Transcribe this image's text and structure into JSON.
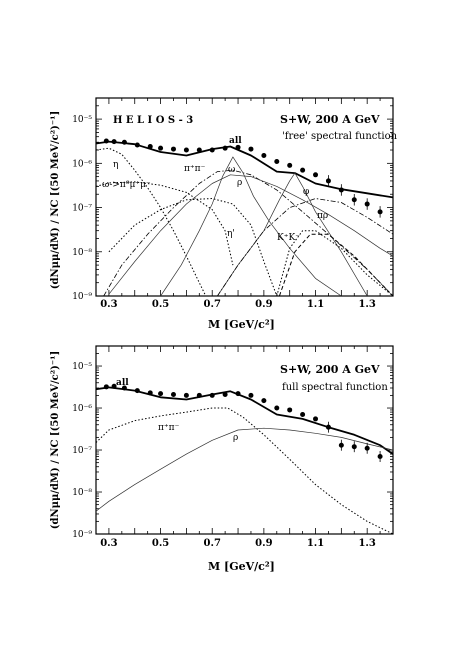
{
  "chart_data": [
    {
      "type": "line",
      "title": "S+W, 200 A GeV",
      "experiment": "H E L I O S - 3",
      "subtitle": "'free' spectral function",
      "xlabel": "M [GeV/c²]",
      "ylabel": "(dNμμ/dM) / NC  [(50 MeV/c²)⁻¹]",
      "y_scale": "log",
      "xlim": [
        0.25,
        1.4
      ],
      "ylim": [
        1e-09,
        3e-05
      ],
      "xticks": [
        "0.3",
        "0.5",
        "0.7",
        "0.9",
        "1.1",
        "1.3"
      ],
      "yticks": [
        "10⁻⁹",
        "10⁻⁸",
        "10⁻⁷",
        "10⁻⁶",
        "10⁻⁵"
      ],
      "series": [
        {
          "name": "all",
          "style": "solid-thick",
          "x": [
            0.25,
            0.3,
            0.4,
            0.5,
            0.6,
            0.7,
            0.77,
            0.85,
            0.95,
            1.02,
            1.1,
            1.2,
            1.3,
            1.4
          ],
          "y": [
            2.8e-06,
            3.1e-06,
            2.7e-06,
            1.8e-06,
            1.5e-06,
            2.1e-06,
            2.4e-06,
            1.5e-06,
            6.5e-07,
            6e-07,
            3.5e-07,
            2.6e-07,
            2.1e-07,
            1.7e-07
          ]
        },
        {
          "name": "η",
          "style": "dotted",
          "x": [
            0.25,
            0.3,
            0.35,
            0.4,
            0.45,
            0.5,
            0.55,
            0.6,
            0.65,
            0.7
          ],
          "y": [
            2e-06,
            2.2e-06,
            1.6e-06,
            7e-07,
            2.8e-07,
            1e-07,
            3e-08,
            8e-09,
            2e-09,
            5e-10
          ]
        },
        {
          "name": "ω->π⁰μ⁺μ⁻",
          "style": "dotted",
          "x": [
            0.25,
            0.3,
            0.4,
            0.5,
            0.6,
            0.7,
            0.75,
            0.78
          ],
          "y": [
            3e-07,
            3.6e-07,
            3.8e-07,
            3.2e-07,
            2.2e-07,
            9e-08,
            3e-08,
            5e-09
          ]
        },
        {
          "name": "π⁺π⁻",
          "style": "dot-dash",
          "x": [
            0.28,
            0.35,
            0.45,
            0.55,
            0.65,
            0.72,
            0.78,
            0.85,
            0.95,
            1.05,
            1.15,
            1.3,
            1.4
          ],
          "y": [
            1e-09,
            5e-09,
            2.5e-08,
            1e-07,
            3.5e-07,
            6.5e-07,
            7e-07,
            5.5e-07,
            2.5e-07,
            8e-08,
            2.5e-08,
            4e-09,
            1e-09
          ]
        },
        {
          "name": "ρ",
          "style": "solid-thin",
          "x": [
            0.3,
            0.4,
            0.5,
            0.6,
            0.7,
            0.77,
            0.85,
            0.95,
            1.05,
            1.15,
            1.25,
            1.35,
            1.4
          ],
          "y": [
            1.1e-09,
            6e-09,
            3e-08,
            1.2e-07,
            3.5e-07,
            5.5e-07,
            5e-07,
            3e-07,
            1.5e-07,
            7e-08,
            3e-08,
            1.2e-08,
            8e-09
          ]
        },
        {
          "name": "ω",
          "style": "solid-thin",
          "x": [
            0.5,
            0.58,
            0.65,
            0.7,
            0.74,
            0.78,
            0.82,
            0.86,
            0.92,
            1.0,
            1.1,
            1.2
          ],
          "y": [
            1e-09,
            5e-09,
            3e-08,
            1.2e-07,
            5e-07,
            1.4e-06,
            6e-07,
            1.8e-07,
            5e-08,
            1.2e-08,
            2.5e-09,
            1e-09
          ]
        },
        {
          "name": "η'",
          "style": "dotted",
          "x": [
            0.3,
            0.4,
            0.5,
            0.6,
            0.7,
            0.78,
            0.85,
            0.9,
            0.95
          ],
          "y": [
            1e-08,
            4e-08,
            9e-08,
            1.5e-07,
            1.6e-07,
            1.2e-07,
            4e-08,
            6e-09,
            1e-09
          ]
        },
        {
          "name": "φ",
          "style": "solid-thin",
          "x": [
            0.72,
            0.8,
            0.9,
            0.96,
            1.0,
            1.02,
            1.05,
            1.1,
            1.2,
            1.3
          ],
          "y": [
            1e-09,
            5e-09,
            3e-08,
            1.5e-07,
            4e-07,
            6e-07,
            3e-07,
            8e-08,
            1e-08,
            1e-09
          ]
        },
        {
          "name": "πρ",
          "style": "dot-dash",
          "x": [
            0.72,
            0.8,
            0.9,
            1.0,
            1.1,
            1.2,
            1.3,
            1.4
          ],
          "y": [
            1e-09,
            5e-09,
            3e-08,
            1e-07,
            1.6e-07,
            1.3e-07,
            6e-08,
            2.5e-08
          ]
        },
        {
          "name": "K⁺K⁻",
          "style": "dotted",
          "x": [
            0.95,
            1.0,
            1.05,
            1.1,
            1.2,
            1.3,
            1.4
          ],
          "y": [
            1e-09,
            1.2e-08,
            3e-08,
            3e-08,
            1.2e-08,
            3e-09,
            1e-09
          ]
        },
        {
          "name": "K K-bar",
          "style": "dashed",
          "x": [
            0.96,
            1.02,
            1.08,
            1.15,
            1.25,
            1.35,
            1.4
          ],
          "y": [
            1e-09,
            1e-08,
            2.5e-08,
            2.5e-08,
            8e-09,
            2e-09,
            1e-09
          ]
        }
      ],
      "data_points": {
        "x": [
          0.29,
          0.32,
          0.36,
          0.41,
          0.46,
          0.5,
          0.55,
          0.6,
          0.65,
          0.7,
          0.75,
          0.8,
          0.85,
          0.9,
          0.95,
          1.0,
          1.05,
          1.1,
          1.15,
          1.2,
          1.25,
          1.3,
          1.35
        ],
        "y": [
          3.2e-06,
          3.1e-06,
          3e-06,
          2.6e-06,
          2.4e-06,
          2.2e-06,
          2.1e-06,
          2e-06,
          2e-06,
          2e-06,
          2.2e-06,
          2.3e-06,
          2.1e-06,
          1.5e-06,
          1.1e-06,
          9e-07,
          7e-07,
          5.5e-07,
          4e-07,
          2.5e-07,
          1.5e-07,
          1.2e-07,
          8e-08
        ]
      }
    },
    {
      "type": "line",
      "title": "S+W, 200 A GeV",
      "subtitle": "full spectral function",
      "xlabel": "M [GeV/c²]",
      "ylabel": "(dNμμ/dM) / NC  [(50 MeV/c²)⁻¹]",
      "y_scale": "log",
      "xlim": [
        0.25,
        1.4
      ],
      "ylim": [
        1e-09,
        3e-05
      ],
      "xticks": [
        "0.3",
        "0.5",
        "0.7",
        "0.9",
        "1.1",
        "1.3"
      ],
      "yticks": [
        "10⁻⁹",
        "10⁻⁸",
        "10⁻⁷",
        "10⁻⁶",
        "10⁻⁵"
      ],
      "series": [
        {
          "name": "all",
          "style": "solid-thick",
          "x": [
            0.25,
            0.3,
            0.4,
            0.5,
            0.6,
            0.7,
            0.77,
            0.85,
            0.95,
            1.05,
            1.15,
            1.25,
            1.35,
            1.4
          ],
          "y": [
            2.8e-06,
            3.1e-06,
            2.6e-06,
            1.8e-06,
            1.6e-06,
            2.1e-06,
            2.5e-06,
            1.6e-06,
            7e-07,
            5.5e-07,
            3.5e-07,
            2.3e-07,
            1.3e-07,
            8e-08
          ]
        },
        {
          "name": "π⁺π⁻",
          "style": "dotted",
          "x": [
            0.25,
            0.3,
            0.4,
            0.5,
            0.6,
            0.7,
            0.76,
            0.82,
            0.9,
            1.0,
            1.1,
            1.2,
            1.3,
            1.4
          ],
          "y": [
            1.5e-07,
            3e-07,
            5e-07,
            6.5e-07,
            8e-07,
            1e-06,
            1e-06,
            6e-07,
            2.3e-07,
            6e-08,
            1.5e-08,
            5e-09,
            2e-09,
            1e-09
          ]
        },
        {
          "name": "ρ",
          "style": "solid-thin",
          "x": [
            0.25,
            0.3,
            0.4,
            0.5,
            0.6,
            0.7,
            0.8,
            0.9,
            1.0,
            1.1,
            1.2,
            1.3,
            1.4
          ],
          "y": [
            3.5e-09,
            6e-09,
            1.5e-08,
            3.5e-08,
            8e-08,
            1.7e-07,
            3e-07,
            3.3e-07,
            3e-07,
            2.5e-07,
            2e-07,
            1.4e-07,
            1e-07
          ]
        }
      ],
      "data_points": {
        "x": [
          0.29,
          0.32,
          0.36,
          0.41,
          0.46,
          0.5,
          0.55,
          0.6,
          0.65,
          0.7,
          0.75,
          0.8,
          0.85,
          0.9,
          0.95,
          1.0,
          1.05,
          1.1,
          1.15,
          1.2,
          1.25,
          1.3,
          1.35
        ],
        "y": [
          3.2e-06,
          3.3e-06,
          3e-06,
          2.6e-06,
          2.3e-06,
          2.2e-06,
          2.1e-06,
          2e-06,
          2e-06,
          2e-06,
          2.1e-06,
          2.2e-06,
          2e-06,
          1.5e-06,
          1e-06,
          9e-07,
          7e-07,
          5.5e-07,
          3.5e-07,
          1.3e-07,
          1.2e-07,
          1.1e-07,
          7e-08
        ]
      }
    }
  ]
}
